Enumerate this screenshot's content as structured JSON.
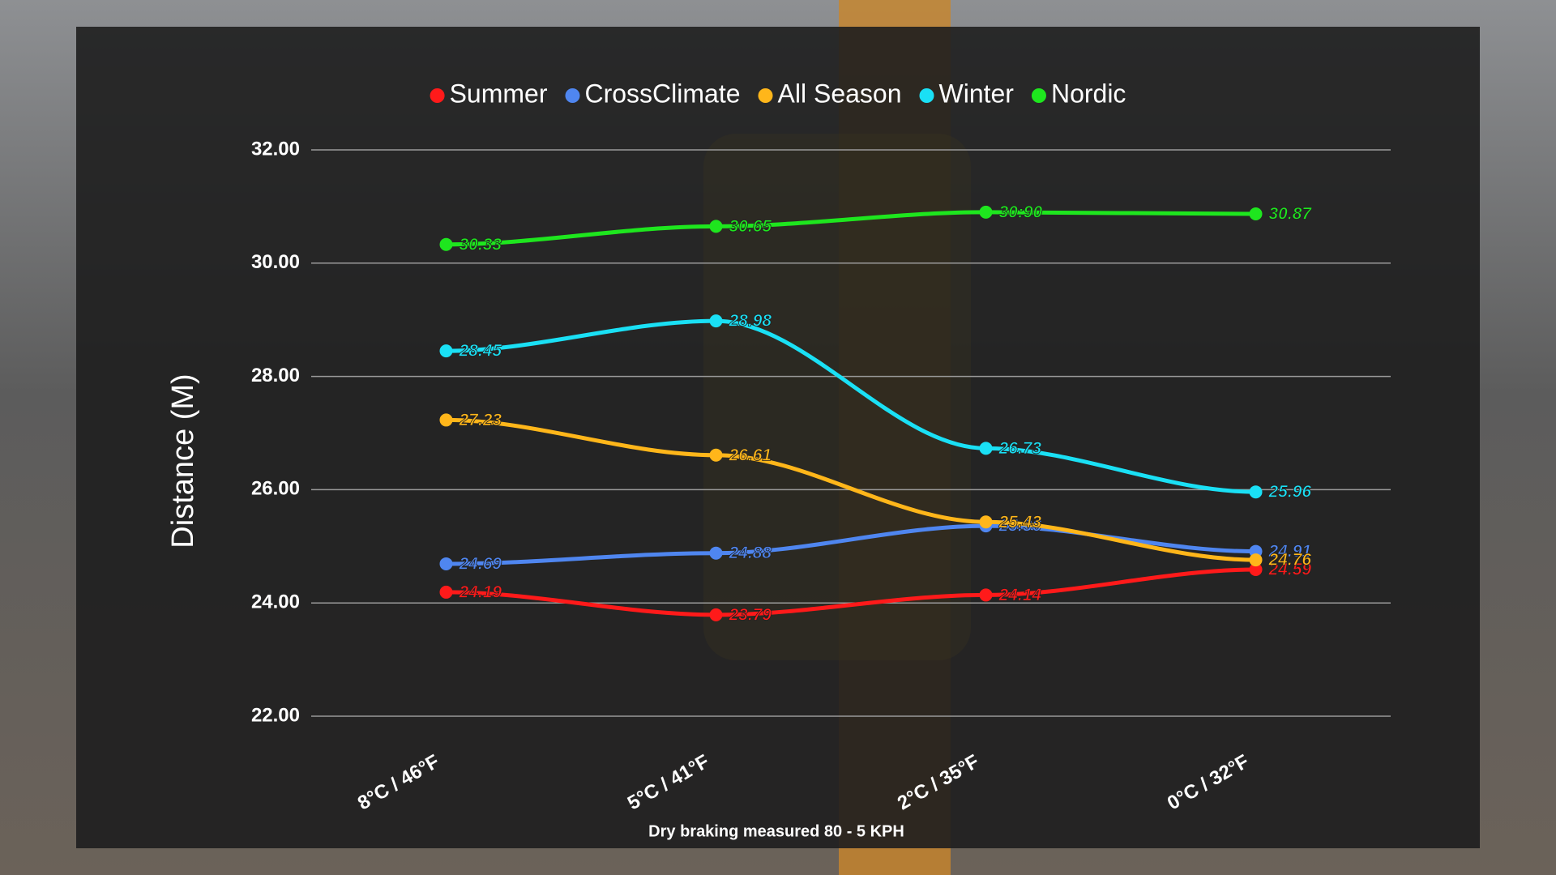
{
  "chart_data": {
    "type": "line",
    "y_label": "Distance (M)",
    "footnote": "Dry braking measured 80 - 5 KPH",
    "categories": [
      "8°C / 46°F",
      "5°C / 41°F",
      "2°C / 35°F",
      "0°C / 32°F"
    ],
    "series": [
      {
        "name": "Summer",
        "color": "#ff1a1a",
        "values": [
          24.19,
          23.79,
          24.14,
          24.59
        ]
      },
      {
        "name": "CrossClimate",
        "color": "#4f86f0",
        "values": [
          24.69,
          24.88,
          25.36,
          24.91
        ]
      },
      {
        "name": "All Season",
        "color": "#ffb61a",
        "values": [
          27.23,
          26.61,
          25.43,
          24.76
        ]
      },
      {
        "name": "Winter",
        "color": "#1ae0f5",
        "values": [
          28.45,
          28.98,
          26.73,
          25.96
        ]
      },
      {
        "name": "Nordic",
        "color": "#1ee61e",
        "values": [
          30.33,
          30.65,
          30.9,
          30.87
        ],
        "value_labels": [
          "30.33",
          "30.65",
          "30:90",
          "30.87"
        ]
      }
    ],
    "ylim": [
      22,
      32
    ],
    "yticks": [
      {
        "value": 22,
        "label": "22.00"
      },
      {
        "value": 24,
        "label": "24.00"
      },
      {
        "value": 26,
        "label": "26.00"
      },
      {
        "value": 28,
        "label": "28.00"
      },
      {
        "value": 30,
        "label": "30.00"
      },
      {
        "value": 32,
        "label": "32.00"
      }
    ],
    "grid": true,
    "legend": "top"
  }
}
